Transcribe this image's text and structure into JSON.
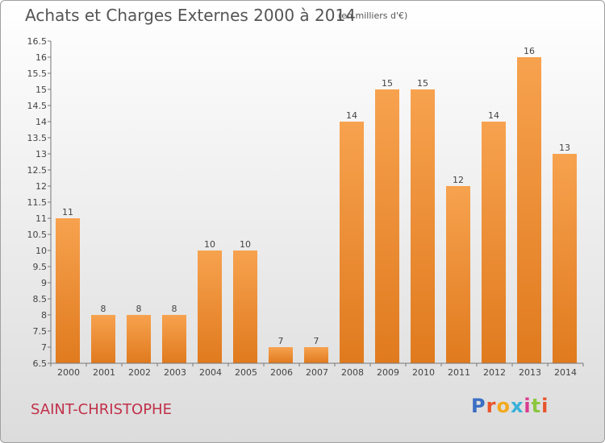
{
  "header": {
    "title": "Achats et Charges Externes 2000 à 2014",
    "subtitle": "(en milliers d'€)"
  },
  "footer": {
    "commune": "SAINT-CHRISTOPHE",
    "logo_text": "Proxiti"
  },
  "colors": {
    "bar_light": "#f7a24f",
    "bar_dark": "#e07a1e",
    "commune": "#c0304a"
  },
  "chart_data": {
    "type": "bar",
    "title": "Achats et Charges Externes 2000 à 2014",
    "subtitle": "(en milliers d'€)",
    "categories": [
      "2000",
      "2001",
      "2002",
      "2003",
      "2004",
      "2005",
      "2006",
      "2007",
      "2008",
      "2009",
      "2010",
      "2011",
      "2012",
      "2013",
      "2014"
    ],
    "values": [
      11,
      8,
      8,
      8,
      10,
      10,
      7,
      7,
      14,
      15,
      15,
      12,
      14,
      16,
      13
    ],
    "ylim": [
      6.5,
      16.5
    ],
    "yticks": [
      6.5,
      7,
      7.5,
      8,
      8.5,
      9,
      9.5,
      10,
      10.5,
      11,
      11.5,
      12,
      12.5,
      13,
      13.5,
      14,
      14.5,
      15,
      15.5,
      16,
      16.5
    ],
    "grid": false,
    "legend": "none"
  }
}
